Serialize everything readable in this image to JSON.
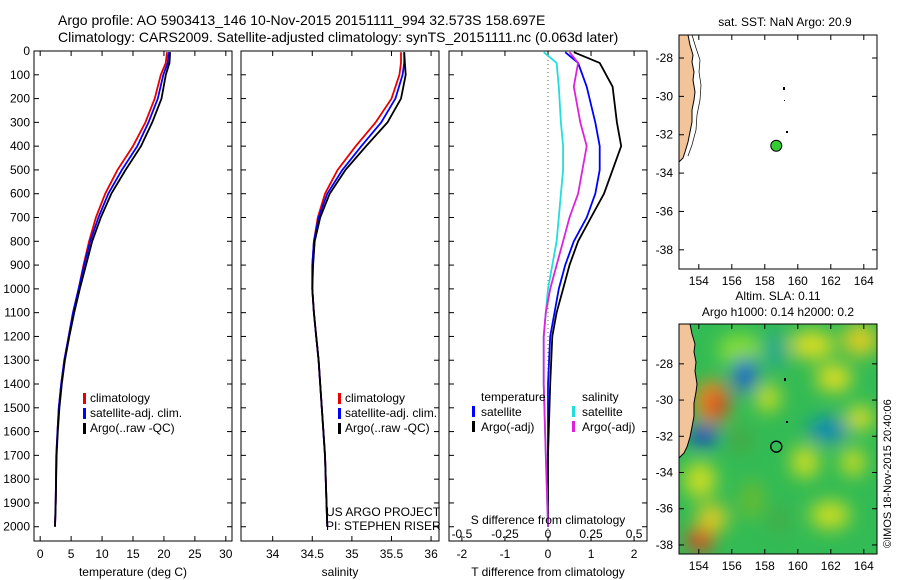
{
  "header": {
    "line1": "Argo profile: AO 5903413_146 10-Nov-2015 20151111_994 32.573S 158.697E",
    "line2": "Climatology: CARS2009. Satellite-adjusted climatology: synTS_20151111.nc (0.063d later)"
  },
  "colors": {
    "climatology": "#e60000",
    "satellite": "#0000ff",
    "argo": "#000000",
    "sat_salinity": "#22dddd",
    "argo_salinity": "#dd22dd",
    "land": "#f2c49a",
    "float": "#33cc33"
  },
  "chart_data": [
    {
      "type": "line",
      "name": "temperature-profile",
      "xlabel": "temperature (deg C)",
      "xlim": [
        -1,
        31
      ],
      "ylim": [
        2060,
        0
      ],
      "xticks": [
        0,
        5,
        10,
        15,
        20,
        25,
        30
      ],
      "yticks": [
        0,
        100,
        200,
        300,
        400,
        500,
        600,
        700,
        800,
        900,
        1000,
        1100,
        1200,
        1300,
        1400,
        1500,
        1600,
        1700,
        1800,
        1900,
        2000
      ],
      "legend": [
        "climatology",
        "satellite-adj. clim.",
        "Argo(..raw -QC)"
      ],
      "series": [
        {
          "name": "climatology",
          "color": "#e60000",
          "x": [
            20.5,
            20.3,
            19.5,
            18.5,
            17.0,
            15.0,
            12.5,
            10.5,
            9.0,
            7.9,
            7.0,
            6.2,
            5.3,
            4.6,
            3.9,
            3.4,
            3.0,
            2.8,
            2.6,
            2.5,
            2.4
          ],
          "y": [
            5,
            50,
            100,
            200,
            300,
            400,
            500,
            600,
            700,
            800,
            900,
            1000,
            1100,
            1200,
            1300,
            1400,
            1500,
            1600,
            1700,
            1900,
            2000
          ]
        },
        {
          "name": "satellite-adj. clim.",
          "color": "#0000ff",
          "x": [
            20.8,
            20.6,
            19.9,
            19.0,
            17.5,
            15.7,
            13.2,
            11.0,
            9.4,
            8.1,
            7.1,
            6.2,
            5.3,
            4.6,
            3.9,
            3.4,
            3.0,
            2.8,
            2.6,
            2.5,
            2.4
          ],
          "y": [
            5,
            50,
            100,
            200,
            300,
            400,
            500,
            600,
            700,
            800,
            900,
            1000,
            1100,
            1200,
            1300,
            1400,
            1500,
            1600,
            1700,
            1900,
            2000
          ]
        },
        {
          "name": "Argo(..raw -QC)",
          "color": "#000000",
          "x": [
            21.0,
            20.9,
            20.3,
            19.6,
            18.1,
            16.3,
            13.8,
            11.5,
            9.8,
            8.4,
            7.4,
            6.4,
            5.5,
            4.7,
            4.0,
            3.5,
            3.1,
            2.85,
            2.65,
            2.5,
            2.4
          ],
          "y": [
            5,
            50,
            100,
            200,
            300,
            400,
            500,
            600,
            700,
            800,
            900,
            1000,
            1100,
            1200,
            1300,
            1400,
            1500,
            1600,
            1700,
            1900,
            2000
          ]
        }
      ]
    },
    {
      "type": "line",
      "name": "salinity-profile",
      "xlabel": "salinity",
      "xlim": [
        33.6,
        36.1
      ],
      "ylim": [
        2060,
        0
      ],
      "xticks": [
        34,
        34.5,
        35,
        35.5,
        36
      ],
      "legend": [
        "climatology",
        "satellite-adj. clim.",
        "Argo(..raw -QC)"
      ],
      "annotation": [
        "US ARGO PROJECT",
        "PI: STEPHEN RISER"
      ],
      "series": [
        {
          "name": "climatology",
          "color": "#e60000",
          "x": [
            35.62,
            35.62,
            35.6,
            35.5,
            35.3,
            35.05,
            34.82,
            34.66,
            34.57,
            34.52,
            34.5,
            34.5,
            34.52,
            34.55,
            34.58,
            34.6,
            34.62,
            34.64,
            34.66,
            34.68,
            34.69
          ],
          "y": [
            5,
            50,
            100,
            200,
            300,
            400,
            500,
            600,
            700,
            800,
            900,
            1000,
            1100,
            1200,
            1300,
            1400,
            1500,
            1600,
            1700,
            1900,
            2000
          ]
        },
        {
          "name": "satellite-adj. clim.",
          "color": "#0000ff",
          "x": [
            35.66,
            35.66,
            35.64,
            35.55,
            35.37,
            35.12,
            34.88,
            34.69,
            34.58,
            34.52,
            34.5,
            34.5,
            34.52,
            34.55,
            34.58,
            34.6,
            34.62,
            34.64,
            34.66,
            34.68,
            34.69
          ],
          "y": [
            5,
            50,
            100,
            200,
            300,
            400,
            500,
            600,
            700,
            800,
            900,
            1000,
            1100,
            1200,
            1300,
            1400,
            1500,
            1600,
            1700,
            1900,
            2000
          ]
        },
        {
          "name": "Argo(..raw -QC)",
          "color": "#000000",
          "x": [
            35.66,
            35.67,
            35.68,
            35.62,
            35.45,
            35.18,
            34.92,
            34.72,
            34.6,
            34.53,
            34.51,
            34.5,
            34.52,
            34.55,
            34.58,
            34.6,
            34.62,
            34.64,
            34.66,
            34.68,
            34.69
          ],
          "y": [
            5,
            50,
            100,
            200,
            300,
            400,
            500,
            600,
            700,
            800,
            900,
            1000,
            1100,
            1200,
            1300,
            1400,
            1500,
            1600,
            1700,
            1900,
            2000
          ]
        }
      ]
    },
    {
      "type": "line",
      "name": "difference-profile",
      "xlabel_top": "S difference from climatology",
      "xlabel": "T difference from climatology",
      "xlim": [
        -2.3,
        2.3
      ],
      "ylim": [
        2060,
        0
      ],
      "xticks": [
        -2,
        -1,
        0,
        1,
        2
      ],
      "xticks_top": [
        "-0.5",
        "-0.25",
        "0",
        "0.25",
        "0.5"
      ],
      "legend_left_title": "temperature",
      "legend_right_title": "salinity",
      "legend": [
        "satellite",
        "Argo(-adj)",
        "satellite",
        "Argo(-adj)"
      ],
      "series": [
        {
          "name": "satellite",
          "color": "#0000ff",
          "x": [
            0.4,
            0.7,
            0.9,
            1.1,
            1.2,
            1.2,
            1.1,
            0.9,
            0.6,
            0.4,
            0.25,
            0.15,
            0.05,
            0.0,
            0.0,
            0.0
          ],
          "y": [
            5,
            50,
            150,
            300,
            400,
            500,
            600,
            700,
            800,
            900,
            1000,
            1100,
            1200,
            1400,
            1700,
            2000
          ]
        },
        {
          "name": "Argo(-adj)",
          "color": "#000000",
          "x": [
            0.6,
            1.2,
            1.5,
            1.6,
            1.7,
            1.5,
            1.3,
            1.0,
            0.7,
            0.5,
            0.35,
            0.2,
            0.1,
            0.05,
            0.0,
            0.0
          ],
          "y": [
            5,
            50,
            150,
            300,
            400,
            500,
            600,
            700,
            800,
            900,
            1000,
            1100,
            1200,
            1400,
            1700,
            2000
          ]
        },
        {
          "name": "satellite",
          "color": "#22dddd",
          "x": [
            -0.1,
            0.2,
            0.25,
            0.3,
            0.35,
            0.35,
            0.3,
            0.25,
            0.2,
            0.1,
            0.0,
            -0.05,
            -0.1,
            -0.1,
            -0.05,
            0.0
          ],
          "y": [
            5,
            50,
            150,
            300,
            400,
            500,
            600,
            700,
            800,
            900,
            1000,
            1100,
            1200,
            1400,
            1700,
            2000
          ]
        },
        {
          "name": "Argo(-adj)",
          "color": "#dd22dd",
          "x": [
            0.5,
            0.7,
            0.6,
            0.75,
            0.9,
            0.8,
            0.7,
            0.5,
            0.35,
            0.2,
            0.05,
            -0.05,
            -0.1,
            -0.1,
            -0.05,
            0.0
          ],
          "y": [
            5,
            50,
            150,
            300,
            400,
            500,
            600,
            700,
            800,
            900,
            1000,
            1100,
            1200,
            1400,
            1700,
            2000
          ]
        }
      ]
    },
    {
      "type": "scatter",
      "name": "sst-map",
      "title": "sat. SST: NaN Argo: 20.9",
      "xlim": [
        152.8,
        164.8
      ],
      "ylim": [
        -39,
        -26.8
      ],
      "xticks": [
        154,
        156,
        158,
        160,
        162,
        164
      ],
      "yticks": [
        -28,
        -30,
        -32,
        -34,
        -36,
        -38
      ],
      "points": [
        {
          "x": 158.697,
          "y": -32.573
        }
      ]
    },
    {
      "type": "heatmap",
      "name": "sla-map",
      "title": [
        "Altim. SLA: 0.11",
        "Argo h1000: 0.14 h2000: 0.2"
      ],
      "xlim": [
        152.8,
        164.8
      ],
      "ylim": [
        -38.5,
        -25.8
      ],
      "xticks": [
        154,
        156,
        158,
        160,
        162,
        164
      ],
      "yticks": [
        -28,
        -30,
        -32,
        -34,
        -36,
        -38
      ],
      "points": [
        {
          "x": 158.697,
          "y": -32.573
        }
      ]
    }
  ],
  "footer": {
    "watermark": "©IMOS 18-Nov-2015 20:40:06"
  }
}
